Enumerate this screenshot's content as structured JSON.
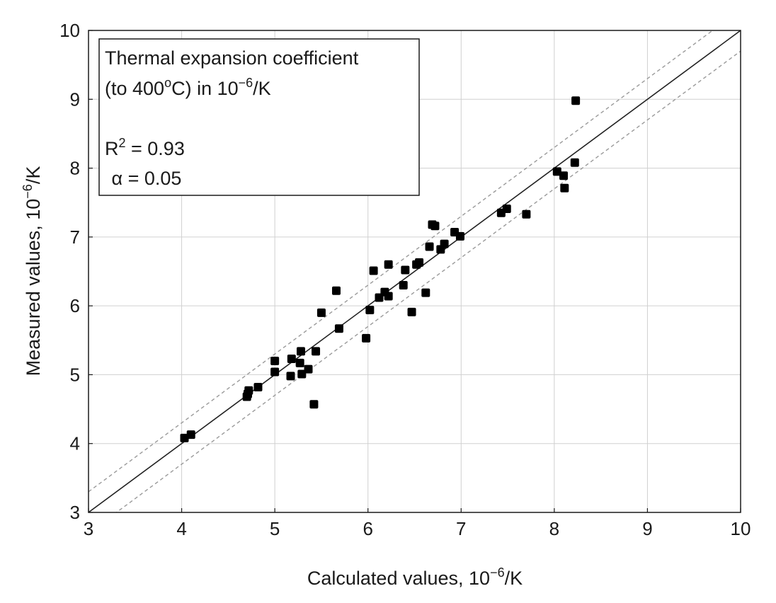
{
  "chart_data": {
    "type": "scatter",
    "xlabel": {
      "base": "Calculated values, 10",
      "exp": "−6",
      "suffix": "/K"
    },
    "ylabel": {
      "base": "Measured values, 10",
      "exp": "−6",
      "suffix": "/K"
    },
    "xlim": [
      3,
      10
    ],
    "ylim": [
      3,
      10
    ],
    "xticks": [
      "3",
      "4",
      "5",
      "6",
      "7",
      "8",
      "9",
      "10"
    ],
    "yticks": [
      "3",
      "4",
      "5",
      "6",
      "7",
      "8",
      "9",
      "10"
    ],
    "grid": true,
    "legend_position": "top-left",
    "annotation": {
      "line1": "Thermal expansion coefficient",
      "line2_pre": "(to 400",
      "line2_deg": "o",
      "line2_mid": "C) in 10",
      "line2_exp": "−6",
      "line2_post": "/K",
      "r2_label": "R",
      "r2_exp": "2",
      "r2_value": " = 0.93",
      "alpha": " α = 0.05"
    },
    "fit_line": {
      "x": [
        3,
        10
      ],
      "y": [
        3,
        10
      ]
    },
    "confidence_band": {
      "upper": {
        "x": [
          3,
          10
        ],
        "y": [
          3.3,
          10.3
        ]
      },
      "lower": {
        "x": [
          3,
          10
        ],
        "y": [
          2.7,
          9.7
        ]
      }
    },
    "points": [
      {
        "x": 4.03,
        "y": 4.08
      },
      {
        "x": 4.1,
        "y": 4.13
      },
      {
        "x": 4.7,
        "y": 4.68
      },
      {
        "x": 4.71,
        "y": 4.72
      },
      {
        "x": 4.72,
        "y": 4.77
      },
      {
        "x": 4.82,
        "y": 4.82
      },
      {
        "x": 5.0,
        "y": 5.04
      },
      {
        "x": 5.0,
        "y": 5.2
      },
      {
        "x": 5.17,
        "y": 4.98
      },
      {
        "x": 5.18,
        "y": 5.23
      },
      {
        "x": 5.27,
        "y": 5.17
      },
      {
        "x": 5.28,
        "y": 5.34
      },
      {
        "x": 5.29,
        "y": 5.01
      },
      {
        "x": 5.36,
        "y": 5.08
      },
      {
        "x": 5.42,
        "y": 4.57
      },
      {
        "x": 5.44,
        "y": 5.34
      },
      {
        "x": 5.5,
        "y": 5.9
      },
      {
        "x": 5.66,
        "y": 6.22
      },
      {
        "x": 5.69,
        "y": 5.67
      },
      {
        "x": 5.98,
        "y": 5.53
      },
      {
        "x": 6.02,
        "y": 5.94
      },
      {
        "x": 6.06,
        "y": 6.51
      },
      {
        "x": 6.12,
        "y": 6.12
      },
      {
        "x": 6.18,
        "y": 6.2
      },
      {
        "x": 6.22,
        "y": 6.14
      },
      {
        "x": 6.22,
        "y": 6.6
      },
      {
        "x": 6.38,
        "y": 6.3
      },
      {
        "x": 6.4,
        "y": 6.52
      },
      {
        "x": 6.47,
        "y": 5.91
      },
      {
        "x": 6.52,
        "y": 6.6
      },
      {
        "x": 6.55,
        "y": 6.63
      },
      {
        "x": 6.62,
        "y": 6.19
      },
      {
        "x": 6.66,
        "y": 6.86
      },
      {
        "x": 6.69,
        "y": 7.18
      },
      {
        "x": 6.72,
        "y": 7.16
      },
      {
        "x": 6.78,
        "y": 6.82
      },
      {
        "x": 6.82,
        "y": 6.9
      },
      {
        "x": 6.93,
        "y": 7.07
      },
      {
        "x": 6.99,
        "y": 7.01
      },
      {
        "x": 7.43,
        "y": 7.35
      },
      {
        "x": 7.49,
        "y": 7.41
      },
      {
        "x": 7.7,
        "y": 7.33
      },
      {
        "x": 8.03,
        "y": 7.95
      },
      {
        "x": 8.1,
        "y": 7.89
      },
      {
        "x": 8.11,
        "y": 7.71
      },
      {
        "x": 8.22,
        "y": 8.08
      },
      {
        "x": 8.23,
        "y": 8.98
      }
    ]
  }
}
